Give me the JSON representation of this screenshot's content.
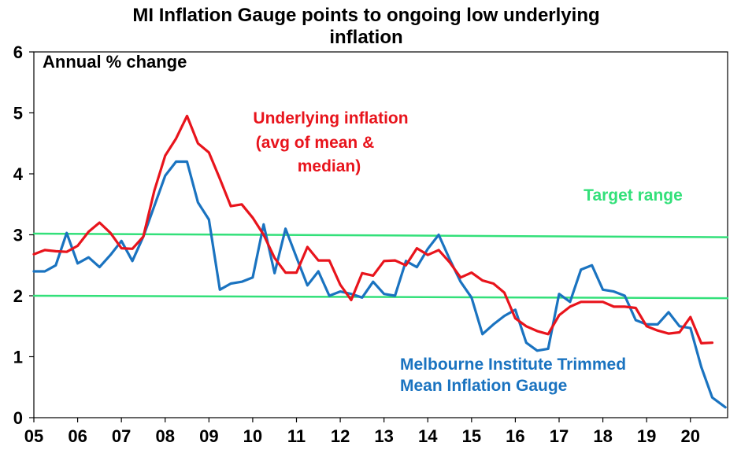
{
  "chart_data": {
    "type": "line",
    "title_lines": [
      "MI Inflation Gauge points to ongoing low underlying",
      "inflation"
    ],
    "unit_label": "Annual % change",
    "ylim": [
      0,
      6
    ],
    "yticks": [
      "0",
      "1",
      "2",
      "3",
      "4",
      "5",
      "6"
    ],
    "xlim": [
      2005,
      2020.85
    ],
    "xticks": [
      "05",
      "06",
      "07",
      "08",
      "09",
      "10",
      "11",
      "12",
      "13",
      "14",
      "15",
      "16",
      "17",
      "18",
      "19",
      "20"
    ],
    "grid": false,
    "annotations": {
      "underlying": [
        "Underlying inflation",
        "(avg of mean &",
        "median)"
      ],
      "target": "Target range",
      "mi": [
        "Melbourne Institute Trimmed",
        "Mean Inflation Gauge"
      ]
    },
    "colors": {
      "underlying": "#e8141c",
      "mi": "#1a73c0",
      "target": "#33e07a",
      "axis": "#000000"
    },
    "series": [
      {
        "name": "Underlying inflation (avg of mean & median)",
        "color": "#e8141c",
        "x": [
          2005.0,
          2005.25,
          2005.5,
          2005.75,
          2006.0,
          2006.25,
          2006.5,
          2006.75,
          2007.0,
          2007.25,
          2007.5,
          2007.75,
          2008.0,
          2008.25,
          2008.5,
          2008.75,
          2009.0,
          2009.25,
          2009.5,
          2009.75,
          2010.0,
          2010.25,
          2010.5,
          2010.75,
          2011.0,
          2011.25,
          2011.5,
          2011.75,
          2012.0,
          2012.25,
          2012.5,
          2012.75,
          2013.0,
          2013.25,
          2013.5,
          2013.75,
          2014.0,
          2014.25,
          2014.5,
          2014.75,
          2015.0,
          2015.25,
          2015.5,
          2015.75,
          2016.0,
          2016.25,
          2016.5,
          2016.75,
          2017.0,
          2017.25,
          2017.5,
          2017.75,
          2018.0,
          2018.25,
          2018.5,
          2018.75,
          2019.0,
          2019.25,
          2019.5,
          2019.75,
          2020.0,
          2020.25,
          2020.5
        ],
        "y": [
          2.68,
          2.75,
          2.73,
          2.72,
          2.82,
          3.05,
          3.2,
          3.03,
          2.78,
          2.77,
          2.97,
          3.72,
          4.3,
          4.58,
          4.95,
          4.5,
          4.35,
          3.92,
          3.47,
          3.5,
          3.28,
          3.0,
          2.62,
          2.38,
          2.38,
          2.8,
          2.58,
          2.58,
          2.18,
          1.93,
          2.37,
          2.33,
          2.57,
          2.58,
          2.5,
          2.78,
          2.67,
          2.75,
          2.55,
          2.3,
          2.38,
          2.25,
          2.2,
          2.05,
          1.63,
          1.5,
          1.42,
          1.37,
          1.68,
          1.82,
          1.9,
          1.9,
          1.9,
          1.82,
          1.82,
          1.8,
          1.5,
          1.43,
          1.38,
          1.4,
          1.65,
          1.22,
          1.23
        ]
      },
      {
        "name": "Melbourne Institute Trimmed Mean Inflation Gauge",
        "color": "#1a73c0",
        "x": [
          2005.0,
          2005.25,
          2005.5,
          2005.75,
          2006.0,
          2006.25,
          2006.5,
          2006.75,
          2007.0,
          2007.25,
          2007.5,
          2007.75,
          2008.0,
          2008.25,
          2008.5,
          2008.75,
          2009.0,
          2009.25,
          2009.5,
          2009.75,
          2010.0,
          2010.25,
          2010.5,
          2010.75,
          2011.0,
          2011.25,
          2011.5,
          2011.75,
          2012.0,
          2012.25,
          2012.5,
          2012.75,
          2013.0,
          2013.25,
          2013.5,
          2013.75,
          2014.0,
          2014.25,
          2014.5,
          2014.75,
          2015.0,
          2015.25,
          2015.5,
          2015.75,
          2016.0,
          2016.25,
          2016.5,
          2016.75,
          2017.0,
          2017.25,
          2017.5,
          2017.75,
          2018.0,
          2018.25,
          2018.5,
          2018.75,
          2019.0,
          2019.25,
          2019.5,
          2019.75,
          2020.0,
          2020.25,
          2020.5,
          2020.8
        ],
        "y": [
          2.4,
          2.4,
          2.5,
          3.03,
          2.53,
          2.63,
          2.47,
          2.67,
          2.9,
          2.57,
          2.97,
          3.47,
          3.97,
          4.2,
          4.2,
          3.53,
          3.25,
          2.1,
          2.2,
          2.23,
          2.3,
          3.17,
          2.37,
          3.1,
          2.63,
          2.17,
          2.4,
          2.0,
          2.07,
          2.03,
          1.97,
          2.23,
          2.03,
          2.0,
          2.57,
          2.47,
          2.77,
          3.0,
          2.6,
          2.23,
          1.97,
          1.37,
          1.53,
          1.67,
          1.77,
          1.23,
          1.1,
          1.13,
          2.03,
          1.9,
          2.43,
          2.5,
          2.1,
          2.07,
          2.0,
          1.6,
          1.53,
          1.53,
          1.73,
          1.5,
          1.47,
          0.83,
          0.33,
          0.17
        ]
      },
      {
        "name": "Target range (upper)",
        "color": "#33e07a",
        "x": [
          2005.0,
          2020.85
        ],
        "y": [
          3.02,
          2.96
        ]
      },
      {
        "name": "Target range (lower)",
        "color": "#33e07a",
        "x": [
          2005.0,
          2020.85
        ],
        "y": [
          2.0,
          1.96
        ]
      }
    ]
  }
}
